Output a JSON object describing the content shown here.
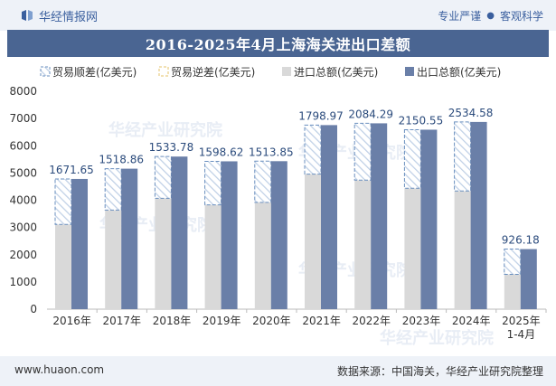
{
  "header": {
    "brand": "华经情报网",
    "tag1": "专业严谨",
    "tag2": "客观科学",
    "title": "2016-2025年4月上海海关进出口差额"
  },
  "footer": {
    "url": "www.huaon.com",
    "source": "数据来源：中国海关，华经产业研究院整理"
  },
  "colors": {
    "import": "#d9d9d9",
    "export": "#6a7fa8",
    "surplus_stroke": "#6a8fbf",
    "surplus_hatch": "#bfd0e6",
    "label": "#2b4b7c",
    "axis": "#bbbbbb"
  },
  "chart_data": {
    "type": "bar",
    "title": "2016-2025年4月上海海关进出口差额",
    "categories": [
      "2016年",
      "2017年",
      "2018年",
      "2019年",
      "2020年",
      "2021年",
      "2022年",
      "2023年",
      "2024年",
      "2025年\n1-4月"
    ],
    "legend": [
      "贸易顺差(亿美元)",
      "贸易逆差(亿美元)",
      "进口总额(亿美元)",
      "出口总额(亿美元)"
    ],
    "series": [
      {
        "name": "进口总额(亿美元)",
        "values": [
          3110,
          3640,
          4070,
          3830,
          3920,
          4960,
          4740,
          4440,
          4340,
          1280
        ]
      },
      {
        "name": "出口总额(亿美元)",
        "values": [
          4781.65,
          5158.86,
          5603.78,
          5428.62,
          5433.85,
          6758.97,
          6824.29,
          6590.55,
          6874.58,
          2206.18
        ]
      },
      {
        "name": "贸易顺差(亿美元)",
        "values": [
          1671.65,
          1518.86,
          1533.78,
          1598.62,
          1513.85,
          1798.97,
          2084.29,
          2150.55,
          2534.58,
          926.18
        ]
      }
    ],
    "labels": [
      "1671.65",
      "1518.86",
      "1533.78",
      "1598.62",
      "1513.85",
      "1798.97",
      "2084.29",
      "2150.55",
      "2534.58",
      "926.18"
    ],
    "ylim": [
      0,
      8000
    ],
    "yticks": [
      0,
      1000,
      2000,
      3000,
      4000,
      5000,
      6000,
      7000,
      8000
    ],
    "xlabel": "",
    "ylabel": ""
  }
}
